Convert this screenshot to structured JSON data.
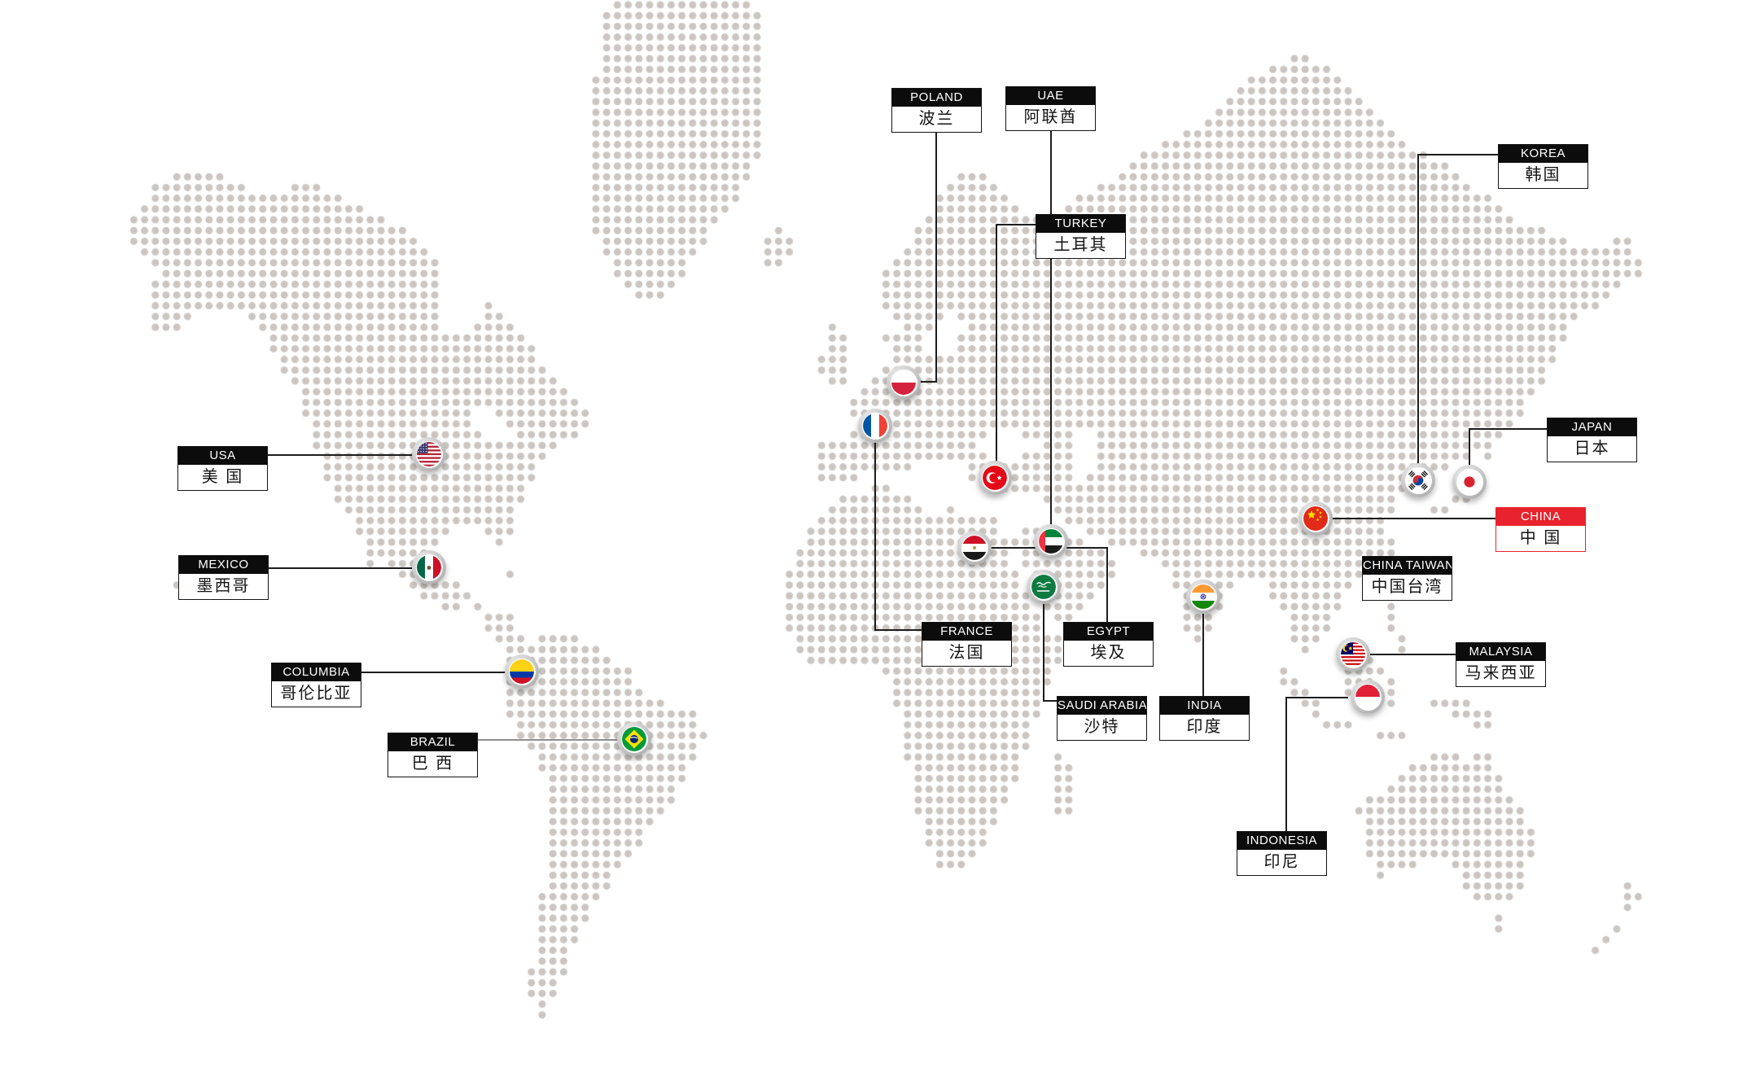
{
  "page": {
    "background": "#ffffff"
  },
  "map": {
    "dot_color": "#cbc6c2",
    "connector_color": "#1c1c1c",
    "brazil_connector_color": "#8f8f8f",
    "accent_color": "#e8232d",
    "label_header_bg": "#0c0c0c",
    "countries": [
      {
        "id": "poland",
        "en": "POLAND",
        "zh": "波兰",
        "flag": "poland-flag-icon",
        "highlighted": false
      },
      {
        "id": "uae",
        "en": "UAE",
        "zh": "阿联酋",
        "flag": "uae-flag-icon",
        "highlighted": false
      },
      {
        "id": "korea",
        "en": "KOREA",
        "zh": "韩国",
        "flag": "korea-flag-icon",
        "highlighted": false
      },
      {
        "id": "turkey",
        "en": "TURKEY",
        "zh": "土耳其",
        "flag": "turkey-flag-icon",
        "highlighted": false
      },
      {
        "id": "japan",
        "en": "JAPAN",
        "zh": "日本",
        "flag": "japan-flag-icon",
        "highlighted": false
      },
      {
        "id": "usa",
        "en": "USA",
        "zh": "美 国",
        "flag": "usa-flag-icon",
        "highlighted": false
      },
      {
        "id": "china",
        "en": "CHINA",
        "zh": "中 国",
        "flag": "china-flag-icon",
        "highlighted": true
      },
      {
        "id": "mexico",
        "en": "MEXICO",
        "zh": "墨西哥",
        "flag": "mexico-flag-icon",
        "highlighted": false
      },
      {
        "id": "china_taiwan",
        "en": "CHINA TAIWAN",
        "zh": "中国台湾",
        "flag": null,
        "highlighted": false
      },
      {
        "id": "france",
        "en": "FRANCE",
        "zh": "法国",
        "flag": "france-flag-icon",
        "highlighted": false
      },
      {
        "id": "egypt",
        "en": "EGYPT",
        "zh": "埃及",
        "flag": "egypt-flag-icon",
        "highlighted": false
      },
      {
        "id": "malaysia",
        "en": "MALAYSIA",
        "zh": "马来西亚",
        "flag": "malaysia-flag-icon",
        "highlighted": false
      },
      {
        "id": "columbia",
        "en": "COLUMBIA",
        "zh": "哥伦比亚",
        "flag": "columbia-flag-icon",
        "highlighted": false
      },
      {
        "id": "saudi_arabia",
        "en": "SAUDI ARABIA",
        "zh": "沙特",
        "flag": "saudi-arabia-flag-icon",
        "highlighted": false
      },
      {
        "id": "india",
        "en": "INDIA",
        "zh": "印度",
        "flag": "india-flag-icon",
        "highlighted": false
      },
      {
        "id": "brazil",
        "en": "BRAZIL",
        "zh": "巴 西",
        "flag": "brazil-flag-icon",
        "highlighted": false
      },
      {
        "id": "indonesia",
        "en": "INDONESIA",
        "zh": "印尼",
        "flag": "indonesia-flag-icon",
        "highlighted": false
      }
    ]
  }
}
